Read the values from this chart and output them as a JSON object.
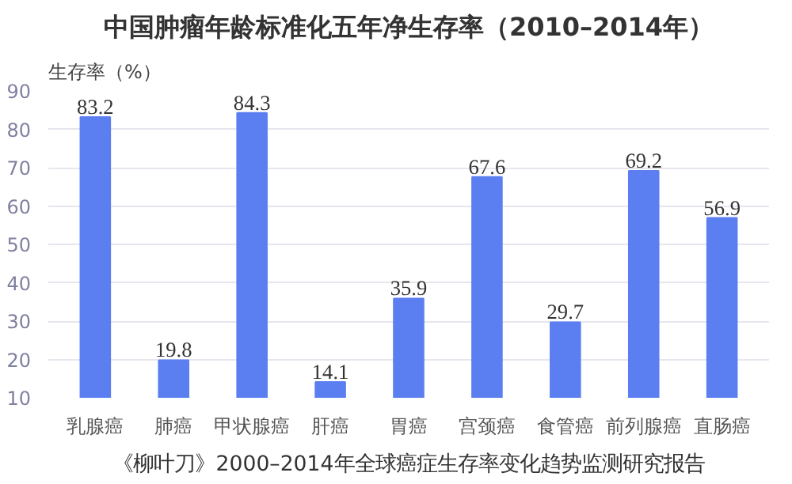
{
  "chart_data": {
    "type": "bar",
    "title": "中国肿瘤年龄标准化五年净生存率（2010–2014年）",
    "ylabel": "生存率（%）",
    "categories": [
      "乳腺癌",
      "肺癌",
      "甲状腺癌",
      "肝癌",
      "胃癌",
      "宫颈癌",
      "食管癌",
      "前列腺癌",
      "直肠癌"
    ],
    "values": [
      83.2,
      19.8,
      84.3,
      14.1,
      35.9,
      67.6,
      29.7,
      69.2,
      56.9
    ],
    "color": "#5b7ff0",
    "data_labels": true,
    "ylim": [
      10,
      90
    ],
    "yticks": [
      10,
      20,
      30,
      40,
      50,
      60,
      70,
      80,
      90
    ],
    "grid": "y",
    "annotations": [
      "《柳叶刀》2000–2014年全球癌症生存率变化趋势监测研究报告"
    ]
  }
}
